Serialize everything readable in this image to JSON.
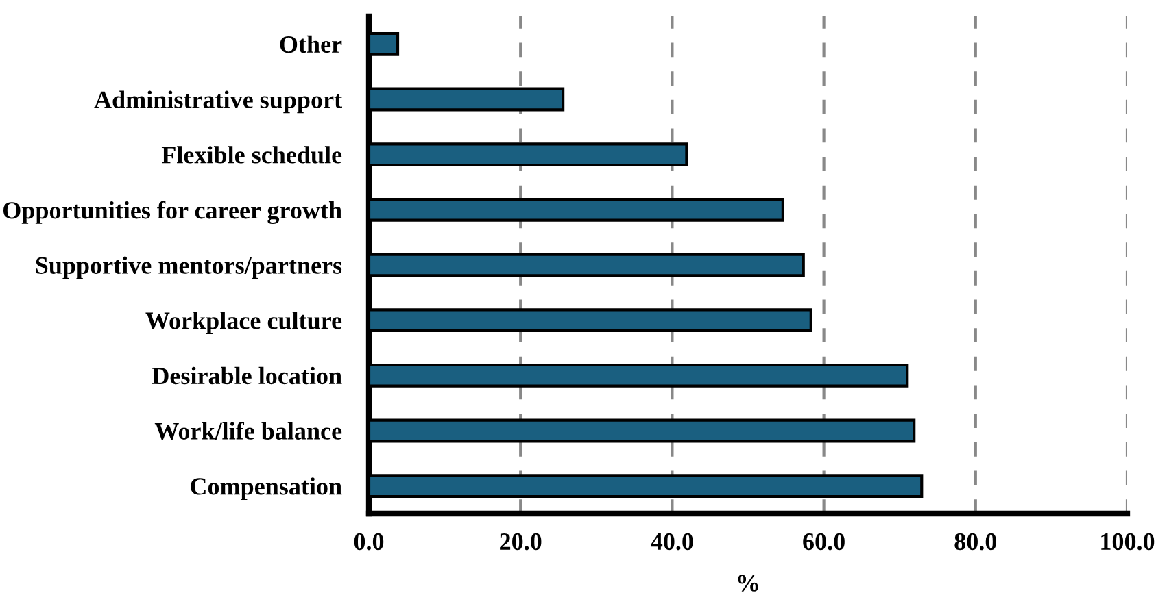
{
  "chart_data": {
    "type": "bar",
    "orientation": "horizontal",
    "xlabel": "%",
    "categories": [
      "Other",
      "Administrative support",
      "Flexible schedule",
      "Opportunities for career growth",
      "Supportive mentors/partners",
      "Workplace culture",
      "Desirable location",
      "Work/life balance",
      "Compensation"
    ],
    "values": [
      3.8,
      25.6,
      41.9,
      54.6,
      57.3,
      58.3,
      71.0,
      71.9,
      72.9
    ],
    "color": "#1a5f80",
    "xlim": [
      0,
      100
    ],
    "xticks": [
      {
        "value": 0,
        "label": "0.0"
      },
      {
        "value": 20,
        "label": "20.0"
      },
      {
        "value": 40,
        "label": "40.0"
      },
      {
        "value": 60,
        "label": "60.0"
      },
      {
        "value": 80,
        "label": "80.0"
      },
      {
        "value": 100,
        "label": "100.0"
      }
    ],
    "grid": "x",
    "line_style": "dashed"
  }
}
